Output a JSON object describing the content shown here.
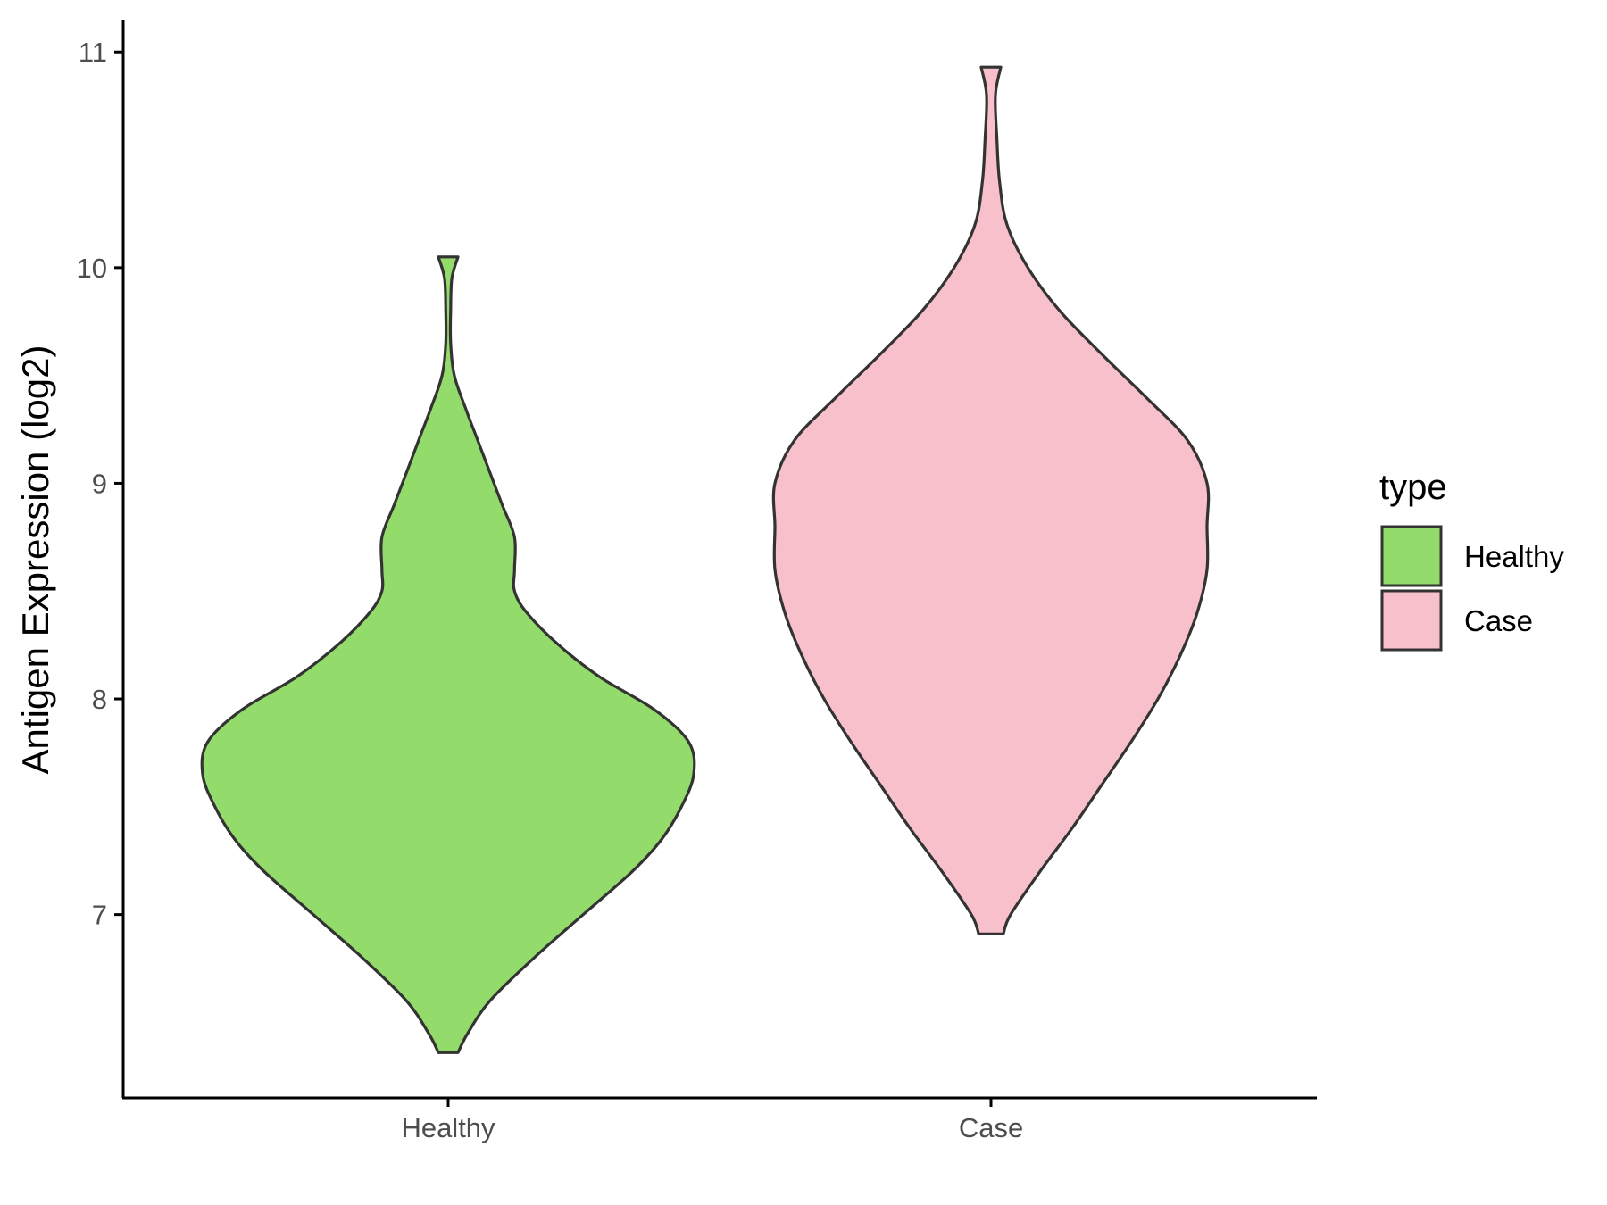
{
  "chart_data": {
    "type": "violin",
    "title": "",
    "xlabel": "",
    "ylabel": "Antigen Expression (log2)",
    "categories": [
      "Healthy",
      "Case"
    ],
    "ylim": [
      6.15,
      11.15
    ],
    "yticks": [
      7,
      8,
      9,
      10,
      11
    ],
    "grid": false,
    "legend": {
      "title": "type",
      "placement": "right",
      "entries": [
        {
          "label": "Healthy",
          "color": "#93DC6B"
        },
        {
          "label": "Case",
          "color": "#F8C0CB"
        }
      ]
    },
    "outline_color": "#333333",
    "series": [
      {
        "name": "Healthy",
        "color": "#93DC6B",
        "y_min": 6.36,
        "y_max": 10.05,
        "density_profile": [
          [
            6.36,
            0.04
          ],
          [
            6.45,
            0.08
          ],
          [
            6.6,
            0.17
          ],
          [
            6.8,
            0.35
          ],
          [
            7.0,
            0.55
          ],
          [
            7.2,
            0.75
          ],
          [
            7.35,
            0.87
          ],
          [
            7.5,
            0.95
          ],
          [
            7.65,
            1.0
          ],
          [
            7.8,
            0.98
          ],
          [
            7.95,
            0.84
          ],
          [
            8.1,
            0.62
          ],
          [
            8.25,
            0.45
          ],
          [
            8.4,
            0.32
          ],
          [
            8.5,
            0.27
          ],
          [
            8.6,
            0.27
          ],
          [
            8.75,
            0.27
          ],
          [
            8.9,
            0.22
          ],
          [
            9.05,
            0.17
          ],
          [
            9.2,
            0.12
          ],
          [
            9.35,
            0.07
          ],
          [
            9.5,
            0.025
          ],
          [
            9.65,
            0.01
          ],
          [
            9.8,
            0.01
          ],
          [
            9.95,
            0.015
          ],
          [
            10.05,
            0.04
          ]
        ]
      },
      {
        "name": "Case",
        "color": "#F8C0CB",
        "y_min": 6.91,
        "y_max": 10.93,
        "density_profile": [
          [
            6.91,
            0.05
          ],
          [
            7.0,
            0.08
          ],
          [
            7.2,
            0.2
          ],
          [
            7.4,
            0.33
          ],
          [
            7.6,
            0.45
          ],
          [
            7.8,
            0.57
          ],
          [
            8.0,
            0.68
          ],
          [
            8.2,
            0.77
          ],
          [
            8.4,
            0.84
          ],
          [
            8.6,
            0.88
          ],
          [
            8.8,
            0.88
          ],
          [
            9.0,
            0.88
          ],
          [
            9.2,
            0.8
          ],
          [
            9.4,
            0.63
          ],
          [
            9.6,
            0.45
          ],
          [
            9.8,
            0.28
          ],
          [
            10.0,
            0.15
          ],
          [
            10.2,
            0.065
          ],
          [
            10.4,
            0.035
          ],
          [
            10.6,
            0.024
          ],
          [
            10.8,
            0.018
          ],
          [
            10.93,
            0.04
          ]
        ]
      }
    ]
  }
}
